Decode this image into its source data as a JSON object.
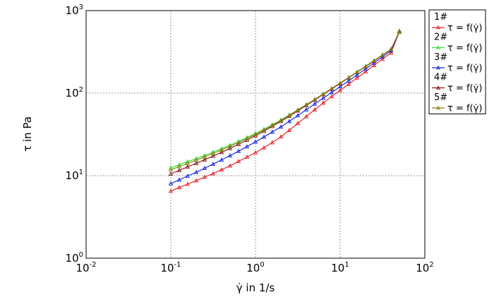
{
  "chart_data": {
    "type": "line",
    "xlabel": "γ̇ in 1/s",
    "ylabel": "τ in Pa",
    "xscale": "log",
    "yscale": "log",
    "xlim": [
      0.01,
      100
    ],
    "ylim": [
      1,
      1000
    ],
    "grid": "dotted",
    "legend_position": "right",
    "x_ticks": [
      {
        "base": "10",
        "exp": "-2"
      },
      {
        "base": "10",
        "exp": "-1"
      },
      {
        "base": "10",
        "exp": "0"
      },
      {
        "base": "10",
        "exp": "1"
      },
      {
        "base": "10",
        "exp": "2"
      }
    ],
    "y_ticks": [
      {
        "base": "10",
        "exp": "0"
      },
      {
        "base": "10",
        "exp": "1"
      },
      {
        "base": "10",
        "exp": "2"
      },
      {
        "base": "10",
        "exp": "3"
      }
    ],
    "x": [
      0.1,
      0.126,
      0.158,
      0.2,
      0.251,
      0.316,
      0.398,
      0.501,
      0.631,
      0.794,
      1.0,
      1.26,
      1.58,
      2.0,
      2.51,
      3.16,
      3.98,
      5.01,
      6.31,
      7.94,
      10.0,
      12.6,
      15.8,
      20.0,
      25.1,
      31.6,
      39.8,
      50.1
    ],
    "series": [
      {
        "name": "1#",
        "label": "τ = f(γ̇)",
        "color": "#e8282b",
        "values": [
          6.5,
          7.2,
          7.9,
          8.7,
          9.6,
          10.6,
          11.8,
          13.2,
          14.9,
          16.8,
          19.0,
          21.8,
          25.2,
          29.6,
          35.5,
          43.0,
          52.0,
          63.0,
          76.0,
          91.0,
          108,
          128,
          153,
          182,
          217,
          258,
          307,
          550
        ]
      },
      {
        "name": "2#",
        "label": "τ = f(γ̇)",
        "color": "#44dd44",
        "values": [
          12.5,
          13.6,
          14.8,
          16.1,
          17.6,
          19.3,
          21.2,
          23.4,
          26.0,
          29.0,
          32.5,
          36.6,
          41.6,
          47.5,
          54.5,
          62.8,
          72.5,
          84.0,
          97.5,
          113,
          132,
          154,
          180,
          211,
          247,
          290,
          340,
          545
        ]
      },
      {
        "name": "3#",
        "label": "τ = f(γ̇)",
        "color": "#1a2ee0",
        "values": [
          8.0,
          8.9,
          9.9,
          11.0,
          12.3,
          13.8,
          15.5,
          17.5,
          19.8,
          22.5,
          25.7,
          29.4,
          33.8,
          39.0,
          45.5,
          53.5,
          63.0,
          74.0,
          87.0,
          102,
          120,
          141,
          166,
          196,
          232,
          275,
          326,
          560
        ]
      },
      {
        "name": "4#",
        "label": "τ = f(γ̇)",
        "color": "#8b1a1a",
        "values": [
          10.5,
          11.6,
          12.8,
          14.1,
          15.6,
          17.3,
          19.2,
          21.4,
          24.0,
          27.0,
          30.5,
          34.6,
          39.6,
          45.5,
          52.5,
          61.0,
          71.0,
          82.5,
          96.5,
          112,
          131,
          153,
          179,
          209,
          245,
          288,
          338,
          565
        ]
      },
      {
        "name": "5#",
        "label": "τ = f(γ̇)",
        "color": "#8a8a1e",
        "values": [
          11.8,
          12.9,
          14.1,
          15.4,
          16.9,
          18.6,
          20.5,
          22.7,
          25.2,
          28.2,
          31.7,
          35.8,
          40.8,
          46.8,
          54.0,
          62.5,
          72.5,
          84.0,
          98.0,
          114,
          133,
          155,
          181,
          212,
          248,
          291,
          341,
          555
        ]
      }
    ]
  }
}
